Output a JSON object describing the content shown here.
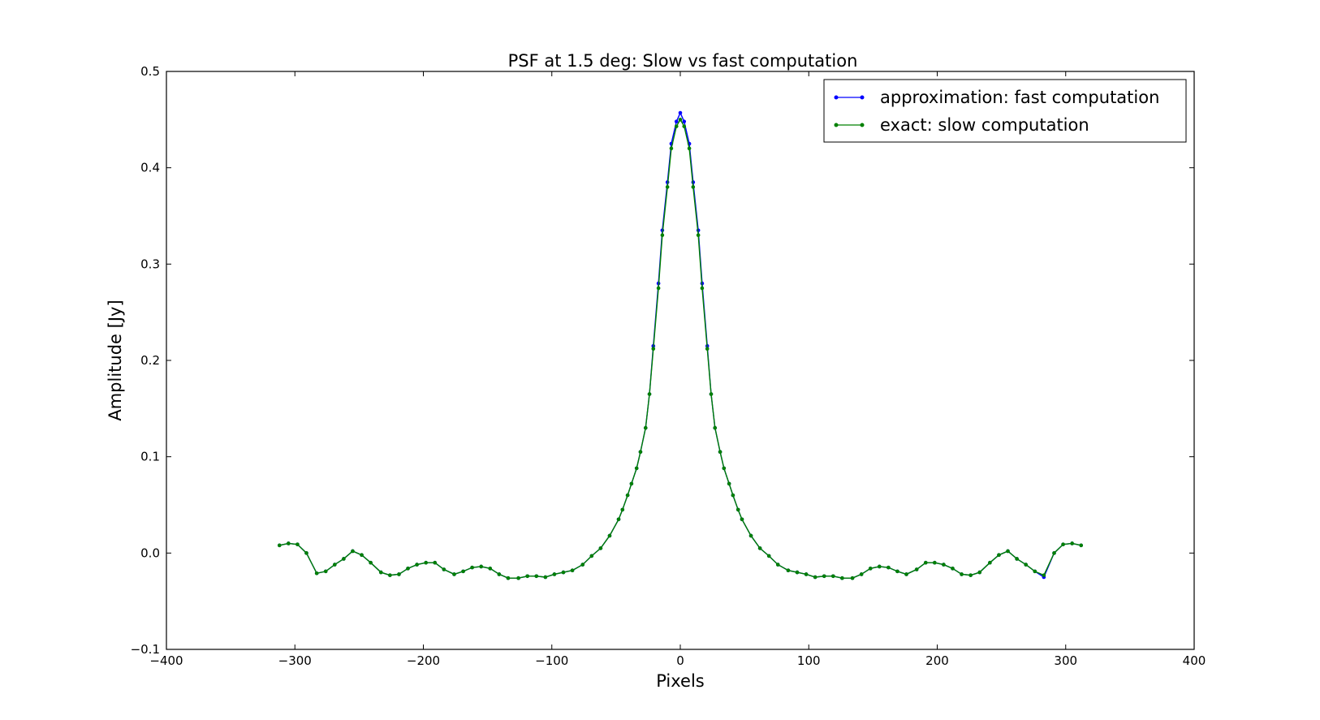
{
  "chart_data": {
    "type": "line",
    "title": "PSF at 1.5 deg: Slow vs fast computation",
    "xlabel": "Pixels",
    "ylabel": "Amplitude [Jy]",
    "xlim": [
      -400,
      400
    ],
    "ylim": [
      -0.1,
      0.5
    ],
    "grid": false,
    "legend_position": "top-right",
    "x_ticks": [
      -400,
      -300,
      -200,
      -100,
      0,
      100,
      200,
      300,
      400
    ],
    "x_tick_labels": [
      "−400",
      "−300",
      "−200",
      "−100",
      "0",
      "100",
      "200",
      "300",
      "400"
    ],
    "y_ticks": [
      -0.1,
      0.0,
      0.1,
      0.2,
      0.3,
      0.4,
      0.5
    ],
    "y_tick_labels": [
      "−0.1",
      "0.0",
      "0.1",
      "0.2",
      "0.3",
      "0.4",
      "0.5"
    ],
    "x": [
      -312,
      -305,
      -298,
      -291,
      -283,
      -276,
      -269,
      -262,
      -255,
      -248,
      -241,
      -233,
      -226,
      -219,
      -212,
      -205,
      -198,
      -191,
      -184,
      -176,
      -169,
      -162,
      -155,
      -148,
      -141,
      -134,
      -126,
      -119,
      -112,
      -105,
      -98,
      -91,
      -84,
      -76,
      -69,
      -62,
      -55,
      -48,
      -45,
      -41,
      -38,
      -34,
      -31,
      -27,
      -24,
      -21,
      -17,
      -14,
      -10,
      -7,
      -3,
      0,
      3,
      7,
      10,
      14,
      17,
      21,
      24,
      27,
      31,
      34,
      38,
      41,
      45,
      48,
      55,
      62,
      69,
      76,
      84,
      91,
      98,
      105,
      112,
      119,
      126,
      134,
      141,
      148,
      155,
      162,
      169,
      176,
      184,
      191,
      198,
      205,
      212,
      219,
      226,
      233,
      241,
      248,
      255,
      262,
      269,
      276,
      283,
      291,
      298,
      305,
      312
    ],
    "series": [
      {
        "name": "approximation: fast computation",
        "color": "#0000ff",
        "values": [
          0.008,
          0.01,
          0.009,
          0.0,
          -0.021,
          -0.019,
          -0.012,
          -0.006,
          0.002,
          -0.002,
          -0.01,
          -0.02,
          -0.023,
          -0.022,
          -0.016,
          -0.012,
          -0.01,
          -0.01,
          -0.017,
          -0.022,
          -0.019,
          -0.015,
          -0.014,
          -0.016,
          -0.022,
          -0.026,
          -0.026,
          -0.024,
          -0.024,
          -0.025,
          -0.022,
          -0.02,
          -0.018,
          -0.012,
          -0.003,
          0.005,
          0.018,
          0.035,
          0.045,
          0.06,
          0.072,
          0.088,
          0.105,
          0.13,
          0.165,
          0.215,
          0.28,
          0.335,
          0.385,
          0.425,
          0.448,
          0.457,
          0.448,
          0.425,
          0.385,
          0.335,
          0.28,
          0.215,
          0.165,
          0.13,
          0.105,
          0.088,
          0.072,
          0.06,
          0.045,
          0.035,
          0.018,
          0.005,
          -0.003,
          -0.012,
          -0.018,
          -0.02,
          -0.022,
          -0.025,
          -0.024,
          -0.024,
          -0.026,
          -0.026,
          -0.022,
          -0.016,
          -0.014,
          -0.015,
          -0.019,
          -0.022,
          -0.017,
          -0.01,
          -0.01,
          -0.012,
          -0.016,
          -0.022,
          -0.023,
          -0.02,
          -0.01,
          -0.002,
          0.002,
          -0.006,
          -0.012,
          -0.019,
          -0.025,
          0.0,
          0.009,
          0.01,
          0.008
        ]
      },
      {
        "name": "exact: slow computation",
        "color": "#008000",
        "values": [
          0.008,
          0.01,
          0.009,
          0.0,
          -0.021,
          -0.019,
          -0.012,
          -0.006,
          0.002,
          -0.002,
          -0.01,
          -0.02,
          -0.023,
          -0.022,
          -0.016,
          -0.012,
          -0.01,
          -0.01,
          -0.017,
          -0.022,
          -0.019,
          -0.015,
          -0.014,
          -0.016,
          -0.022,
          -0.026,
          -0.026,
          -0.024,
          -0.024,
          -0.025,
          -0.022,
          -0.02,
          -0.018,
          -0.012,
          -0.003,
          0.005,
          0.018,
          0.035,
          0.045,
          0.06,
          0.072,
          0.088,
          0.105,
          0.13,
          0.165,
          0.212,
          0.275,
          0.33,
          0.38,
          0.42,
          0.443,
          0.45,
          0.443,
          0.42,
          0.38,
          0.33,
          0.275,
          0.212,
          0.165,
          0.13,
          0.105,
          0.088,
          0.072,
          0.06,
          0.045,
          0.035,
          0.018,
          0.005,
          -0.003,
          -0.012,
          -0.018,
          -0.02,
          -0.022,
          -0.025,
          -0.024,
          -0.024,
          -0.026,
          -0.026,
          -0.022,
          -0.016,
          -0.014,
          -0.015,
          -0.019,
          -0.022,
          -0.017,
          -0.01,
          -0.01,
          -0.012,
          -0.016,
          -0.022,
          -0.023,
          -0.02,
          -0.01,
          -0.002,
          0.002,
          -0.006,
          -0.012,
          -0.019,
          -0.023,
          0.0,
          0.009,
          0.01,
          0.008
        ]
      }
    ]
  }
}
